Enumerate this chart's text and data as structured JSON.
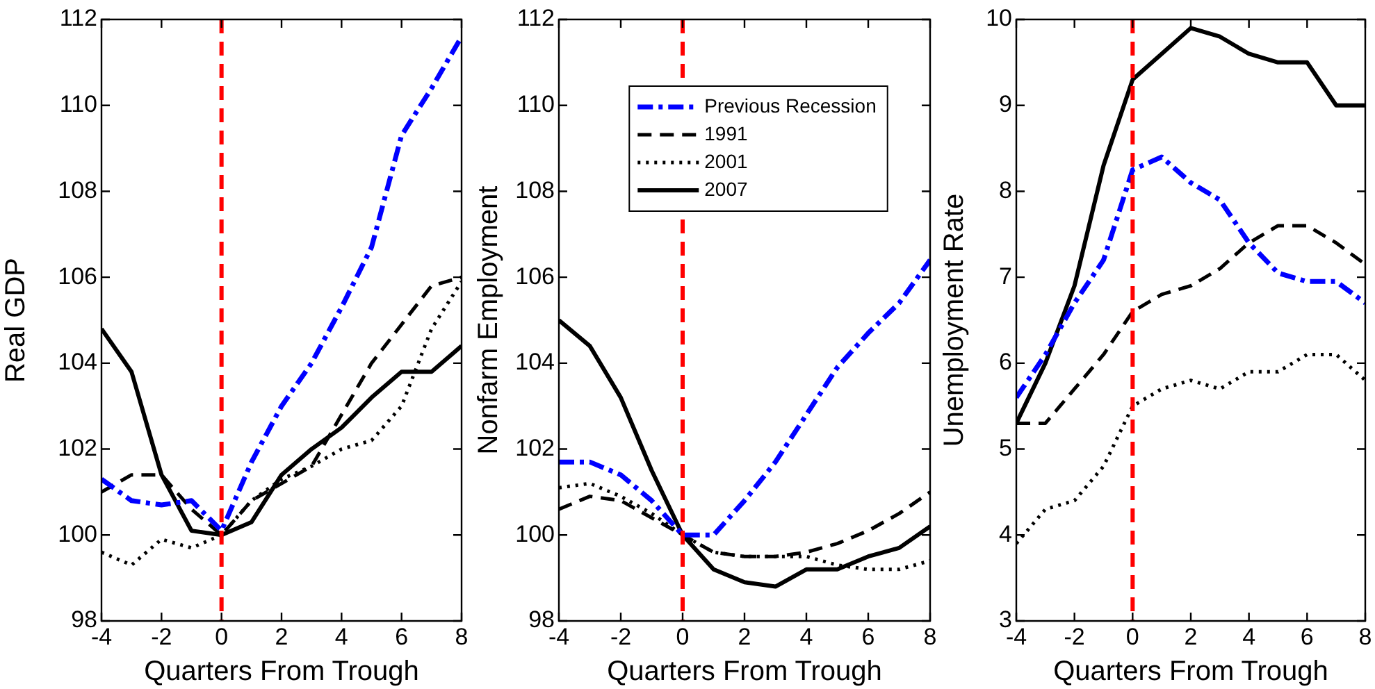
{
  "chart_data": [
    {
      "type": "line",
      "ylabel": "Real GDP",
      "xlabel": "Quarters From Trough",
      "x": [
        -4,
        -3,
        -2,
        -1,
        0,
        1,
        2,
        3,
        4,
        5,
        6,
        7,
        8
      ],
      "xlim": [
        -4,
        8
      ],
      "xticks": [
        -4,
        -2,
        0,
        2,
        4,
        6,
        8
      ],
      "ylim": [
        98,
        112
      ],
      "yticks": [
        98,
        100,
        102,
        104,
        106,
        108,
        110,
        112
      ],
      "marker": "none",
      "series": [
        {
          "color": "#0000ff",
          "line_style": "dashdot",
          "values": [
            101.3,
            100.8,
            100.7,
            100.8,
            100.1,
            101.7,
            103.0,
            104.0,
            105.3,
            106.7,
            109.3,
            110.4,
            111.6
          ]
        },
        {
          "color": "#000000",
          "line_style": "dashed",
          "values": [
            101.0,
            101.4,
            101.4,
            100.6,
            100.0,
            100.8,
            101.2,
            101.6,
            102.8,
            104.0,
            104.9,
            105.8,
            106.0
          ]
        },
        {
          "color": "#000000",
          "line_style": "dotted",
          "values": [
            99.6,
            99.3,
            99.9,
            99.7,
            100.0,
            100.8,
            101.3,
            101.6,
            102.0,
            102.2,
            103.0,
            104.8,
            105.9
          ]
        },
        {
          "color": "#000000",
          "line_style": "solid",
          "values": [
            104.8,
            103.8,
            101.4,
            100.1,
            100.0,
            100.3,
            101.4,
            102.0,
            102.5,
            103.2,
            103.8,
            103.8,
            104.4
          ]
        }
      ],
      "ref_lines": [
        {
          "axis": "x",
          "value": 0,
          "color": "#ff0000",
          "line_style": "dashed"
        }
      ]
    },
    {
      "type": "line",
      "ylabel": "Nonfarm Employment",
      "xlabel": "Quarters From Trough",
      "x": [
        -4,
        -3,
        -2,
        -1,
        0,
        1,
        2,
        3,
        4,
        5,
        6,
        7,
        8
      ],
      "xlim": [
        -4,
        8
      ],
      "xticks": [
        -4,
        -2,
        0,
        2,
        4,
        6,
        8
      ],
      "ylim": [
        98,
        112
      ],
      "yticks": [
        98,
        100,
        102,
        104,
        106,
        108,
        110,
        112
      ],
      "marker": "none",
      "legend": "top",
      "series": [
        {
          "name": "Previous Recession",
          "color": "#0000ff",
          "line_style": "dashdot",
          "values": [
            101.7,
            101.7,
            101.4,
            100.8,
            100.0,
            100.0,
            100.8,
            101.7,
            102.8,
            103.9,
            104.7,
            105.4,
            106.4
          ]
        },
        {
          "name": "1991",
          "color": "#000000",
          "line_style": "dashed",
          "values": [
            100.6,
            100.9,
            100.8,
            100.4,
            100.0,
            99.6,
            99.5,
            99.5,
            99.6,
            99.8,
            100.1,
            100.5,
            101.0
          ]
        },
        {
          "name": "2001",
          "color": "#000000",
          "line_style": "dotted",
          "values": [
            101.1,
            101.2,
            100.9,
            100.5,
            100.0,
            99.6,
            99.5,
            99.5,
            99.5,
            99.3,
            99.2,
            99.2,
            99.4
          ]
        },
        {
          "name": "2007",
          "color": "#000000",
          "line_style": "solid",
          "values": [
            105.0,
            104.4,
            103.2,
            101.5,
            100.0,
            99.2,
            98.9,
            98.8,
            99.2,
            99.2,
            99.5,
            99.7,
            100.2
          ]
        }
      ],
      "ref_lines": [
        {
          "axis": "x",
          "value": 0,
          "color": "#ff0000",
          "line_style": "dashed"
        }
      ]
    },
    {
      "type": "line",
      "ylabel": "Unemployment Rate",
      "xlabel": "Quarters From Trough",
      "x": [
        -4,
        -3,
        -2,
        -1,
        0,
        1,
        2,
        3,
        4,
        5,
        6,
        7,
        8
      ],
      "xlim": [
        -4,
        8
      ],
      "xticks": [
        -4,
        -2,
        0,
        2,
        4,
        6,
        8
      ],
      "ylim": [
        3,
        10
      ],
      "yticks": [
        3,
        4,
        5,
        6,
        7,
        8,
        9,
        10
      ],
      "marker": "none",
      "series": [
        {
          "color": "#0000ff",
          "line_style": "dashdot",
          "values": [
            5.6,
            6.1,
            6.7,
            7.2,
            8.25,
            8.4,
            8.1,
            7.9,
            7.4,
            7.05,
            6.95,
            6.95,
            6.7
          ]
        },
        {
          "color": "#000000",
          "line_style": "dashed",
          "values": [
            5.3,
            5.3,
            5.7,
            6.1,
            6.6,
            6.8,
            6.9,
            7.1,
            7.4,
            7.6,
            7.6,
            7.4,
            7.15
          ]
        },
        {
          "color": "#000000",
          "line_style": "dotted",
          "values": [
            3.9,
            4.3,
            4.4,
            4.8,
            5.5,
            5.7,
            5.8,
            5.7,
            5.9,
            5.9,
            6.1,
            6.1,
            5.8
          ]
        },
        {
          "color": "#000000",
          "line_style": "solid",
          "values": [
            5.3,
            6.0,
            6.9,
            8.3,
            9.3,
            9.6,
            9.9,
            9.8,
            9.6,
            9.5,
            9.5,
            9.0,
            9.0
          ]
        }
      ],
      "ref_lines": [
        {
          "axis": "x",
          "value": 0,
          "color": "#ff0000",
          "line_style": "dashed"
        }
      ]
    }
  ]
}
